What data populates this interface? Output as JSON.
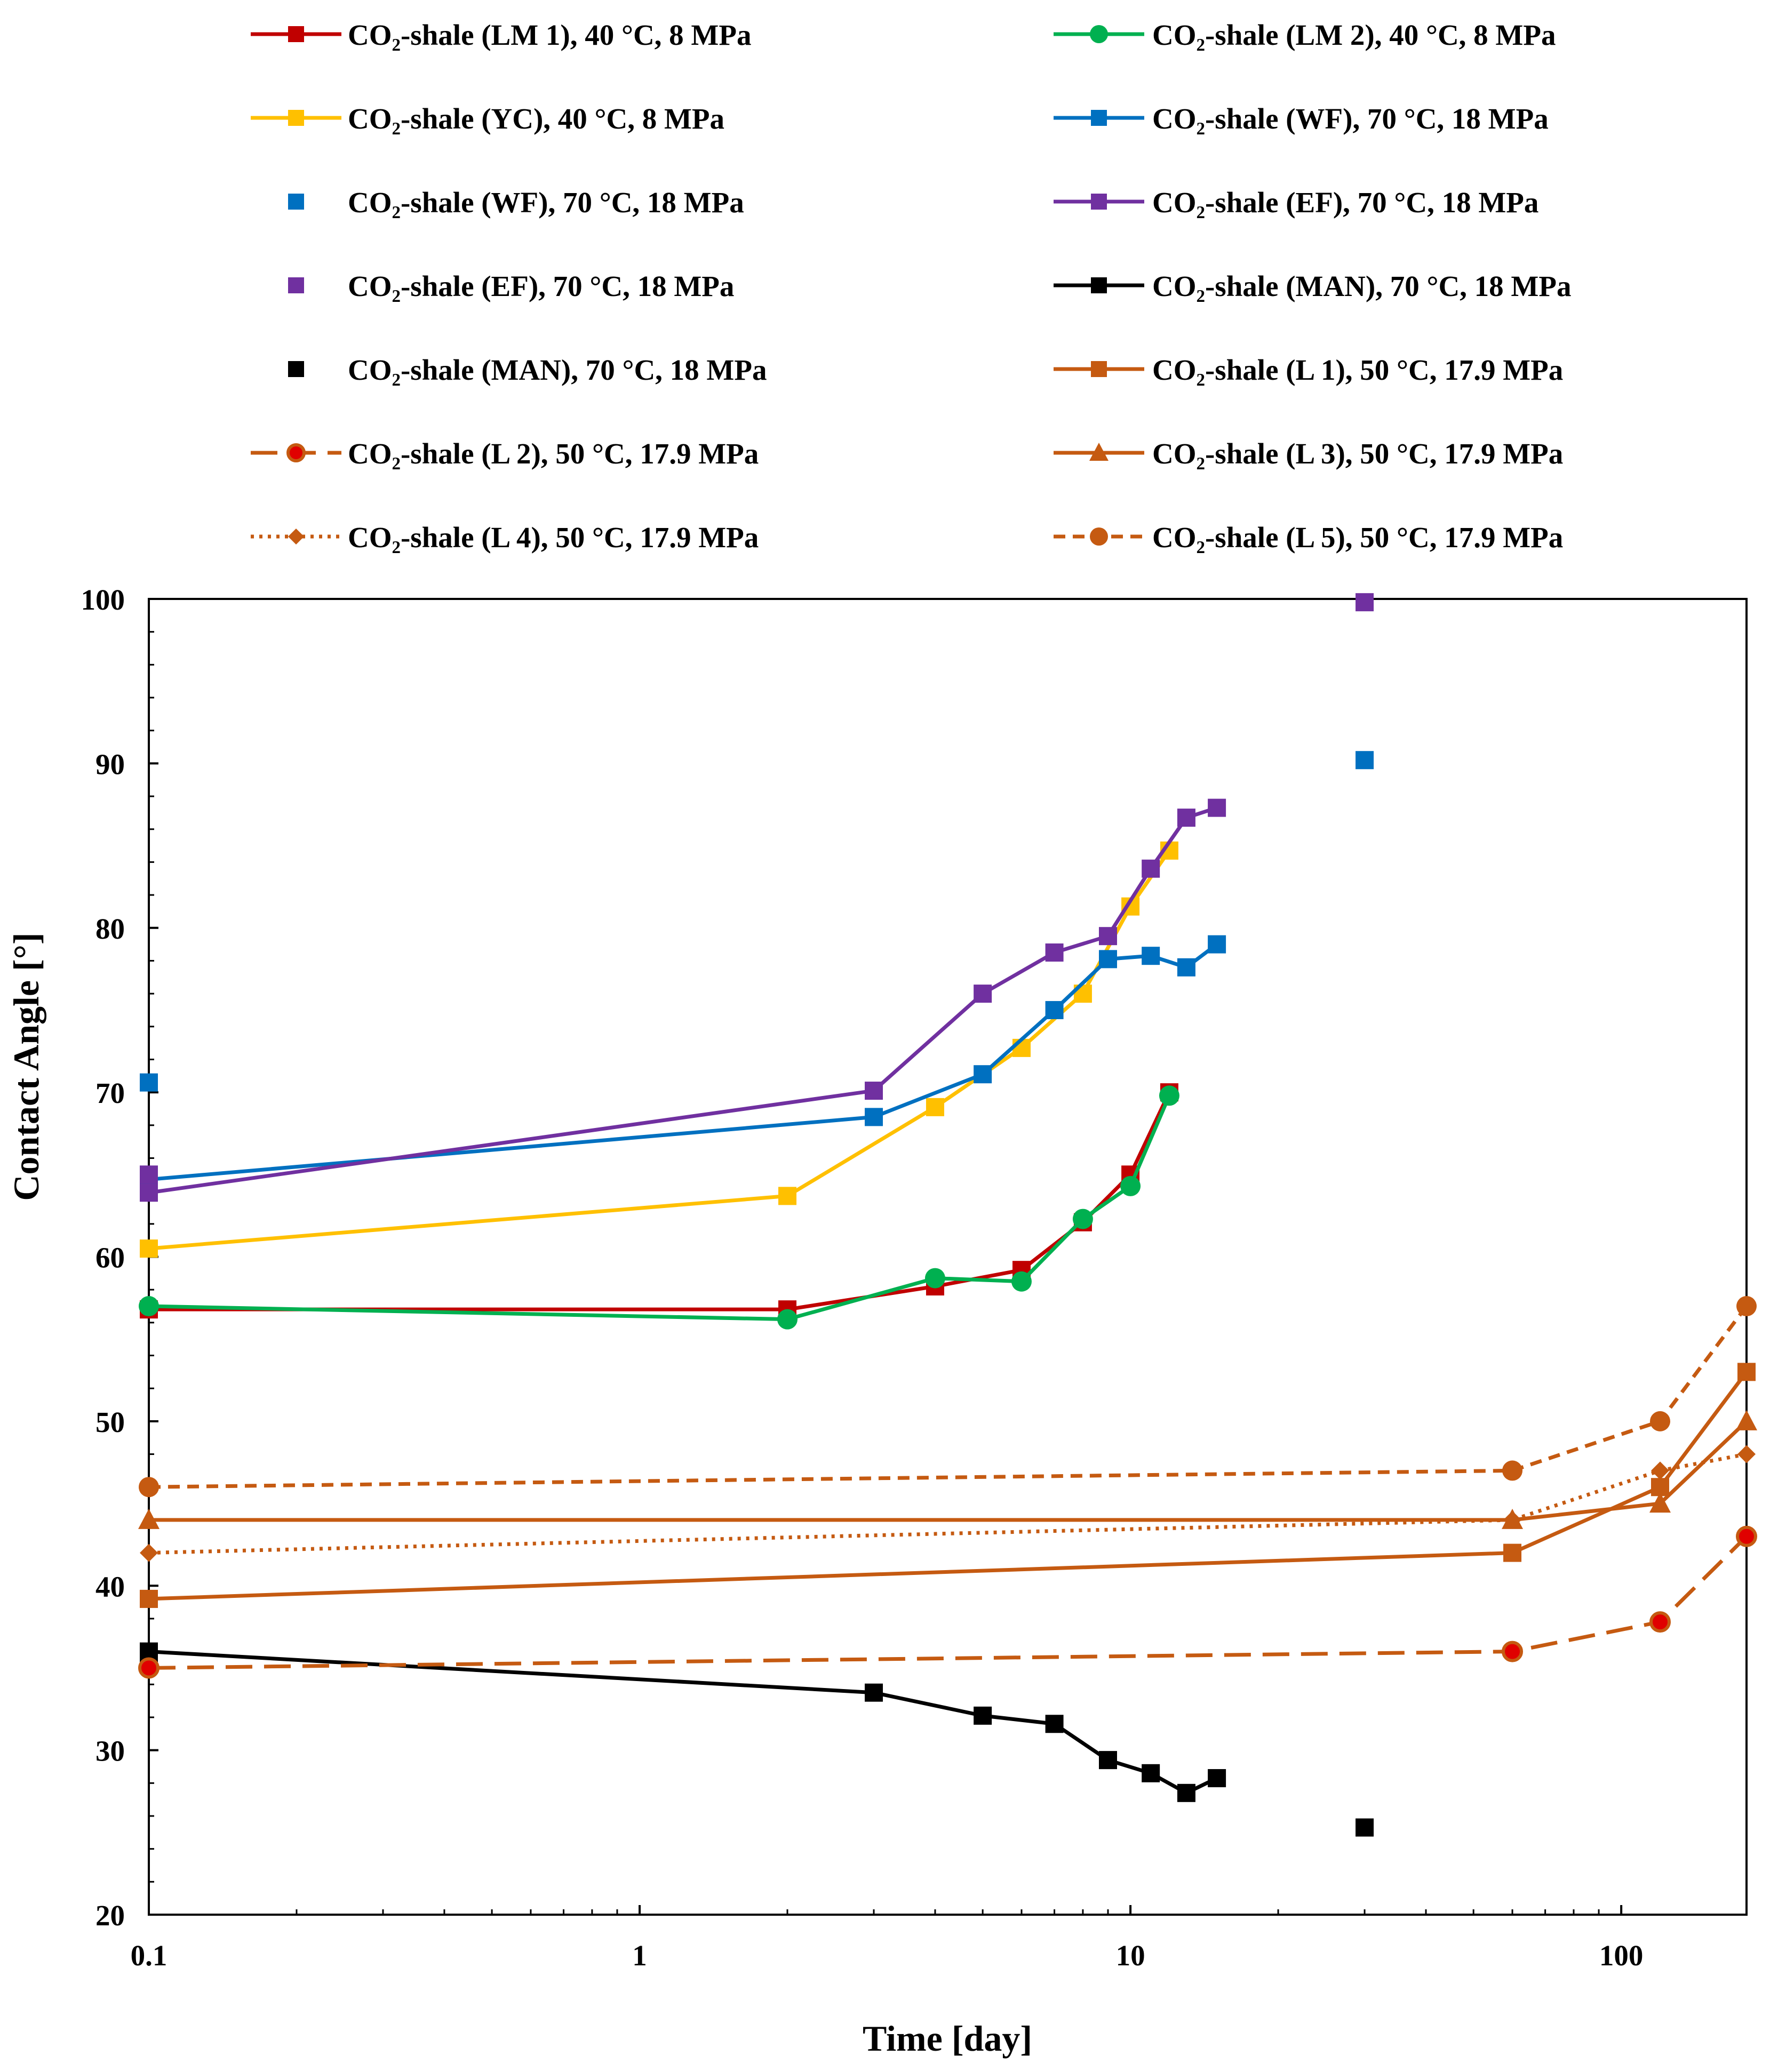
{
  "chart_data": {
    "type": "line",
    "xlabel": "Time [day]",
    "ylabel": "Contact Angle [°]",
    "xscale": "log",
    "xlim": [
      0.1,
      180
    ],
    "ylim": [
      20,
      100
    ],
    "xticks": [
      0.1,
      1,
      10,
      100
    ],
    "xtick_labels": [
      "0.1",
      "1",
      "10",
      "100"
    ],
    "yticks": [
      20,
      30,
      40,
      50,
      60,
      70,
      80,
      90,
      100
    ],
    "ytick_labels": [
      "20",
      "30",
      "40",
      "50",
      "60",
      "70",
      "80",
      "90",
      "100"
    ],
    "grid": false,
    "legend_placement": "top",
    "series": [
      {
        "name": "CO₂-shale (LM 1), 40 °C, 8 MPa",
        "color": "#C00000",
        "marker": "square",
        "line": "solid",
        "x": [
          0.1,
          2,
          4,
          6,
          8,
          10,
          12
        ],
        "y": [
          56.8,
          56.8,
          58.2,
          59.2,
          62.1,
          65.0,
          70.0
        ]
      },
      {
        "name": "CO₂-shale (LM 2), 40 °C, 8 MPa",
        "color": "#00B050",
        "marker": "circle",
        "line": "solid",
        "x": [
          0.1,
          2,
          4,
          6,
          8,
          10,
          12
        ],
        "y": [
          57.0,
          56.2,
          58.7,
          58.5,
          62.3,
          64.3,
          69.8
        ]
      },
      {
        "name": "CO₂-shale (YC), 40 °C, 8 MPa",
        "color": "#FFC000",
        "marker": "square",
        "line": "solid",
        "x": [
          0.1,
          2,
          4,
          6,
          8,
          10,
          12
        ],
        "y": [
          60.5,
          63.7,
          69.1,
          72.7,
          76.0,
          81.3,
          84.7
        ]
      },
      {
        "name": "CO₂-shale (WF), 70 °C, 18 MPa",
        "color": "#0070C0",
        "marker": "square",
        "line": "solid",
        "x": [
          0.1,
          3,
          5,
          7,
          9,
          11,
          13,
          15
        ],
        "y": [
          64.7,
          68.5,
          71.1,
          75.0,
          78.1,
          78.3,
          77.6,
          79.0
        ]
      },
      {
        "name": "CO₂-shale (WF), 70 °C, 18 MPa",
        "color": "#0070C0",
        "marker": "square",
        "line": "none",
        "x": [
          0.1,
          30
        ],
        "y": [
          70.6,
          90.2
        ]
      },
      {
        "name": "CO₂-shale (EF), 70 °C, 18 MPa",
        "color": "#7030A0",
        "marker": "square",
        "line": "solid",
        "x": [
          0.1,
          3,
          5,
          7,
          9,
          11,
          13,
          15
        ],
        "y": [
          63.9,
          70.1,
          76.0,
          78.5,
          79.5,
          83.6,
          86.7,
          87.3
        ]
      },
      {
        "name": "CO₂-shale (EF), 70 °C, 18 MPa",
        "color": "#7030A0",
        "marker": "square",
        "line": "none",
        "x": [
          0.1,
          30
        ],
        "y": [
          65.0,
          99.8
        ]
      },
      {
        "name": "CO₂-shale (MAN), 70 °C, 18 MPa",
        "color": "#000000",
        "marker": "square",
        "line": "solid",
        "x": [
          0.1,
          3,
          5,
          7,
          9,
          11,
          13,
          15
        ],
        "y": [
          36.0,
          33.5,
          32.1,
          31.6,
          29.4,
          28.6,
          27.4,
          28.3
        ]
      },
      {
        "name": "CO₂-shale (MAN), 70 °C, 18 MPa",
        "color": "#000000",
        "marker": "square",
        "line": "none",
        "x": [
          0.1,
          30
        ],
        "y": [
          35.7,
          25.3
        ]
      },
      {
        "name": "CO₂-shale (L 1), 50 °C, 17.9 MPa",
        "color": "#C55A11",
        "marker": "square",
        "line": "solid",
        "x": [
          0.1,
          60,
          120,
          180
        ],
        "y": [
          39.2,
          42.0,
          46.0,
          53.0
        ]
      },
      {
        "name": "CO₂-shale (L 2), 50 °C, 17.9 MPa",
        "color": "#C55A11",
        "marker": "circle-red",
        "line": "longdash",
        "x": [
          0.1,
          60,
          120,
          180
        ],
        "y": [
          35.0,
          36.0,
          37.8,
          43.0
        ]
      },
      {
        "name": "CO₂-shale (L 3), 50 °C, 17.9 MPa",
        "color": "#C55A11",
        "marker": "triangle",
        "line": "solid",
        "x": [
          0.1,
          60,
          120,
          180
        ],
        "y": [
          44.0,
          44.0,
          45.0,
          50.0
        ]
      },
      {
        "name": "CO₂-shale (L 4), 50 °C, 17.9 MPa",
        "color": "#C55A11",
        "marker": "diamond",
        "line": "dotted",
        "x": [
          0.1,
          60,
          120,
          180
        ],
        "y": [
          42.0,
          44.0,
          47.0,
          48.0
        ]
      },
      {
        "name": "CO₂-shale (L 5), 50 °C, 17.9 MPa",
        "color": "#C55A11",
        "marker": "circle",
        "line": "dashed",
        "x": [
          0.1,
          60,
          120,
          180
        ],
        "y": [
          46.0,
          47.0,
          50.0,
          57.0
        ]
      }
    ]
  }
}
